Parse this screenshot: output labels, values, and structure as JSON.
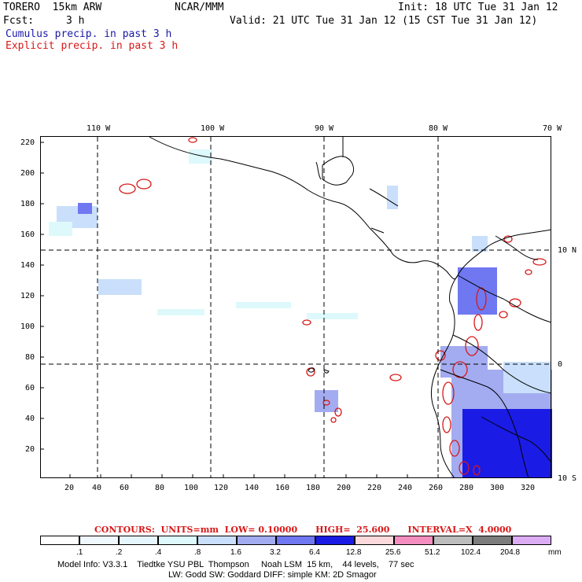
{
  "header": {
    "model": "TORERO  15km ARW",
    "org": "NCAR/MMM",
    "init": "Init: 18 UTC Tue 31 Jan 12",
    "fcst_label": "Fcst:",
    "fcst_value": "3 h",
    "valid": "Valid: 21 UTC Tue 31 Jan 12 (15 CST Tue 31 Jan 12)",
    "line_cumulus": "Cumulus precip. in past 3 h",
    "line_explicit": "Explicit precip. in past 3 h"
  },
  "map": {
    "lon_labels_top": [
      "110 W",
      "100 W",
      "90 W",
      "80 W",
      "70 W"
    ],
    "lat_labels_right": [
      "10 N",
      "0",
      "10 S"
    ],
    "x_ticks": [
      "20",
      "40",
      "60",
      "80",
      "100",
      "120",
      "140",
      "160",
      "180",
      "200",
      "220",
      "240",
      "260",
      "280",
      "300",
      "320"
    ],
    "y_ticks": [
      "220",
      "200",
      "180",
      "160",
      "140",
      "120",
      "100",
      "80",
      "60",
      "40",
      "20"
    ]
  },
  "contour_info": "CONTOURS:  UNITS=mm  LOW= 0.10000      HIGH=  25.600      INTERVAL=X  4.0000",
  "legend": {
    "labels": [
      ".1",
      ".2",
      ".4",
      ".8",
      "1.6",
      "3.2",
      "6.4",
      "12.8",
      "25.6",
      "51.2",
      "102.4",
      "204.8"
    ],
    "unit": "mm",
    "colors": [
      "#ffffff",
      "#f0f8ff",
      "#e6f6ff",
      "#ddf9fb",
      "#c9dffb",
      "#a3acf0",
      "#6f78f0",
      "#1b1be6",
      "#fcd9dc",
      "#f58ec0",
      "#bdbdbd",
      "#7d7d7d",
      "#dcadf5"
    ]
  },
  "footer": {
    "line1": "Model Info: V3.3.1    Tiedtke YSU PBL  Thompson     Noah LSM  15 km,    44 levels,    77 sec",
    "line2": "LW: Godd SW: Goddard DIFF: simple KM: 2D Smagor"
  }
}
